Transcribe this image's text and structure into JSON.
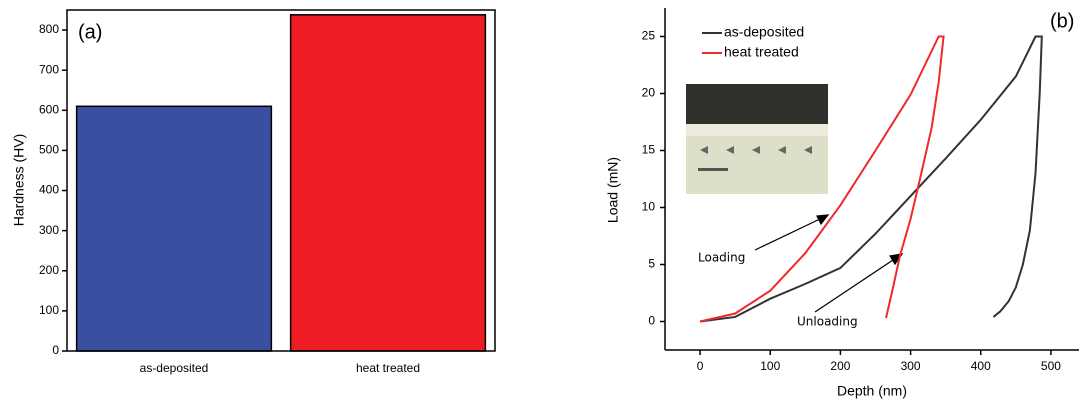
{
  "chart_data": [
    {
      "type": "bar",
      "panel_label": "(a)",
      "y_label": "Hardness (HV)",
      "categories": [
        "as-deposited",
        "heat treated"
      ],
      "values": [
        610,
        838
      ],
      "colors": [
        "#3a4fa0",
        "#ee1c24"
      ],
      "ylim": [
        0,
        850
      ],
      "yticks": [
        0,
        100,
        200,
        300,
        400,
        500,
        600,
        700,
        800
      ]
    },
    {
      "type": "line",
      "panel_label": "(b)",
      "x_label": "Depth (nm)",
      "y_label": "Load (mN)",
      "annotations": [
        "Loading",
        "Unloading"
      ],
      "series": [
        {
          "name": "as-deposited",
          "color": "#333333",
          "x": [
            0,
            50,
            100,
            150,
            200,
            250,
            300,
            350,
            400,
            450,
            478,
            487,
            484,
            478,
            470,
            460,
            450,
            440,
            428,
            418
          ],
          "values": [
            0,
            0.4,
            2,
            3.3,
            4.7,
            7.7,
            11,
            14.3,
            17.7,
            21.5,
            25,
            25,
            20,
            13,
            8,
            5,
            3,
            1.8,
            0.9,
            0.4
          ]
        },
        {
          "name": "heat treated",
          "color": "#ee2a2a",
          "x": [
            0,
            50,
            100,
            150,
            200,
            250,
            300,
            340,
            347,
            340,
            330,
            313,
            300,
            285,
            275,
            265
          ],
          "values": [
            0,
            0.7,
            2.7,
            6,
            10.2,
            15,
            19.9,
            25,
            25,
            21,
            17,
            12.4,
            9,
            5.8,
            3,
            0.3
          ]
        }
      ],
      "xlim": [
        -50,
        540
      ],
      "xticks": [
        0,
        100,
        200,
        300,
        400,
        500
      ],
      "ylim": [
        -2.5,
        27.5
      ],
      "yticks": [
        0,
        5,
        10,
        15,
        20,
        25
      ]
    }
  ]
}
